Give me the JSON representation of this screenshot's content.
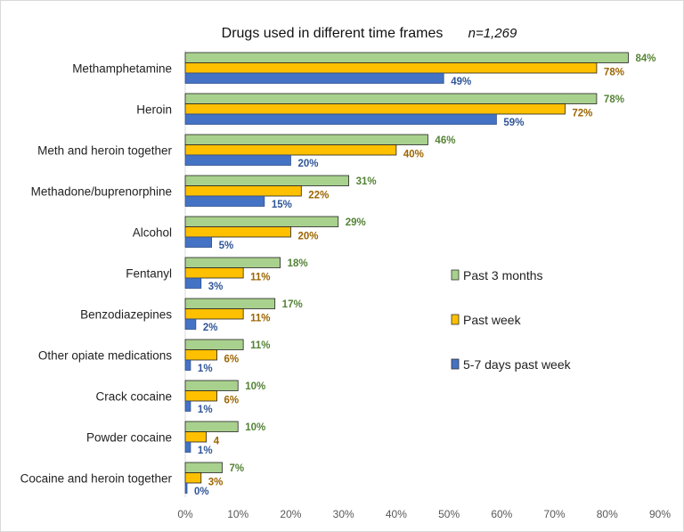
{
  "chart_data": {
    "type": "bar",
    "orientation": "horizontal",
    "title": "Drugs used in different time frames",
    "subtitle": "n=1,269",
    "xlabel": "",
    "ylabel": "",
    "xlim": [
      0,
      90
    ],
    "x_ticks": [
      "0%",
      "10%",
      "20%",
      "30%",
      "40%",
      "50%",
      "60%",
      "70%",
      "80%",
      "90%"
    ],
    "grid": false,
    "legend_position": "right",
    "categories": [
      "Methamphetamine",
      "Heroin",
      "Meth and heroin together",
      "Methadone/buprenorphine",
      "Alcohol",
      "Fentanyl",
      "Benzodiazepines",
      "Other opiate medications",
      "Crack cocaine",
      "Powder cocaine",
      "Cocaine and heroin together"
    ],
    "series": [
      {
        "name": "Past 3 months",
        "color": "#a9d18e",
        "label_color": "#548235",
        "values": [
          84,
          78,
          46,
          31,
          29,
          18,
          17,
          11,
          10,
          10,
          7
        ],
        "labels": [
          "84%",
          "78%",
          "46%",
          "31%",
          "29%",
          "18%",
          "17%",
          "11%",
          "10%",
          "10%",
          "7%"
        ]
      },
      {
        "name": "Past week",
        "color": "#ffc000",
        "label_color": "#9c6500",
        "values": [
          78,
          72,
          40,
          22,
          20,
          11,
          11,
          6,
          6,
          4,
          3
        ],
        "labels": [
          "78%",
          "72%",
          "40%",
          "22%",
          "20%",
          "11%",
          "11%",
          "6%",
          "6%",
          "4",
          "3%"
        ]
      },
      {
        "name": "5-7 days past week",
        "color": "#4472c4",
        "label_color": "#2f5597",
        "values": [
          49,
          59,
          20,
          15,
          5,
          3,
          2,
          1,
          1,
          1,
          0
        ],
        "labels": [
          "49%",
          "59%",
          "20%",
          "15%",
          "5%",
          "3%",
          "2%",
          "1%",
          "1%",
          "1%",
          "0%"
        ]
      }
    ]
  }
}
